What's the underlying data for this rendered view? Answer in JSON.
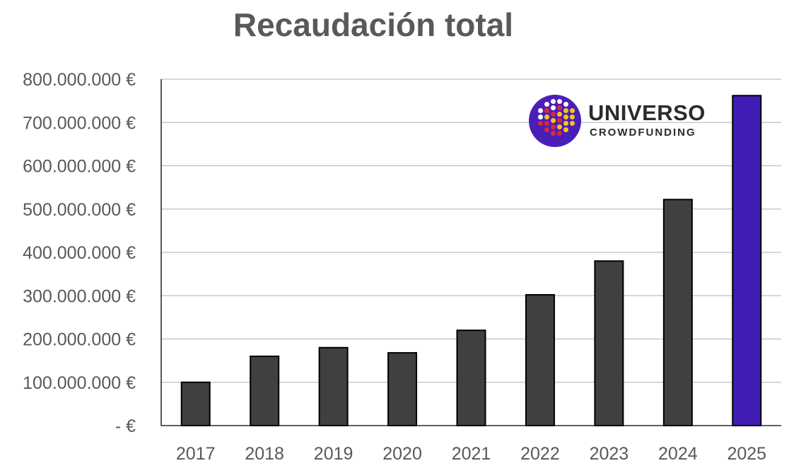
{
  "logo": {
    "word": "UNIVERSO",
    "sub": "CROWDFUNDING",
    "circle_color": "#4a1fb8",
    "dot_colors": {
      "white": "#ffffff",
      "red": "#e0263a",
      "yellow": "#f5c518"
    }
  },
  "chart_data": {
    "type": "bar",
    "title": "Recaudación total",
    "xlabel": "",
    "ylabel": "",
    "categories": [
      "2017",
      "2018",
      "2019",
      "2020",
      "2021",
      "2022",
      "2023",
      "2024",
      "2025"
    ],
    "values": [
      100000000,
      160000000,
      180000000,
      168000000,
      220000000,
      302000000,
      380000000,
      522000000,
      762000000
    ],
    "ylim": [
      0,
      800000000
    ],
    "yticks": [
      0,
      100000000,
      200000000,
      300000000,
      400000000,
      500000000,
      600000000,
      700000000,
      800000000
    ],
    "ytick_labels": [
      "-   €",
      "100.000.000 €",
      "200.000.000 €",
      "300.000.000 €",
      "400.000.000 €",
      "500.000.000 €",
      "600.000.000 €",
      "700.000.000 €",
      "800.000.000 €"
    ],
    "grid": true,
    "legend": "none",
    "colors": {
      "bar": "#404040",
      "highlight": "#401cb5",
      "highlight_category": "2025",
      "grid": "#bfbfbf",
      "axis": "#000000",
      "tick_text": "#595959"
    }
  }
}
